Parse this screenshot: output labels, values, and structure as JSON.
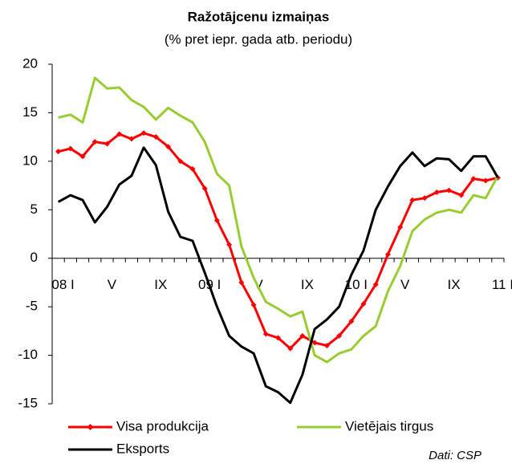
{
  "chart_data": {
    "type": "line",
    "title": "Ražotājcenu izmaiņas",
    "subtitle": "(% pret iepr. gada atb. periodu)",
    "annotation": "Dati: CSP",
    "categories": [
      "08 I",
      null,
      null,
      null,
      "V",
      null,
      null,
      null,
      "IX",
      null,
      null,
      null,
      "09 I",
      null,
      null,
      null,
      "V",
      null,
      null,
      null,
      "IX",
      null,
      null,
      null,
      "10 I",
      null,
      null,
      null,
      "V",
      null,
      null,
      null,
      "IX",
      null,
      null,
      null,
      "11 I"
    ],
    "series": [
      {
        "name": "Visa produkcija",
        "color": "#ff0000",
        "markers": true,
        "values": [
          11,
          11.3,
          10.5,
          12,
          11.8,
          12.8,
          12.3,
          12.9,
          12.5,
          11.5,
          10,
          9.2,
          7.2,
          3.9,
          1.4,
          -2.5,
          -4.8,
          -7.8,
          -8.2,
          -9.3,
          -8,
          -8.7,
          -9,
          -8,
          -6.5,
          -4.7,
          -2.7,
          0.4,
          3.2,
          6,
          6.2,
          6.8,
          7,
          6.5,
          8.2,
          8,
          8.3
        ]
      },
      {
        "name": "Vietējais tirgus",
        "color": "#99cc33",
        "markers": false,
        "values": [
          14.5,
          14.8,
          14,
          18.6,
          17.5,
          17.6,
          16.3,
          15.6,
          14.3,
          15.5,
          14.7,
          14,
          12,
          8.7,
          7.5,
          1.2,
          -2,
          -4.5,
          -5.2,
          -6,
          -5.5,
          -10,
          -10.7,
          -9.8,
          -9.4,
          -8,
          -7,
          -3.4,
          -0.8,
          2.8,
          4,
          4.7,
          5,
          4.7,
          6.5,
          6.2,
          8.5
        ]
      },
      {
        "name": "Eksports",
        "color": "#000000",
        "markers": false,
        "values": [
          5.8,
          6.5,
          6,
          3.7,
          5.3,
          7.6,
          8.5,
          11.4,
          9.6,
          4.8,
          2.2,
          1.8,
          -1.5,
          -5,
          -8,
          -9.1,
          -9.8,
          -13.2,
          -13.8,
          -14.9,
          -12,
          -7.3,
          -6.3,
          -5,
          -1.7,
          0.8,
          5,
          7.4,
          9.5,
          10.9,
          9.5,
          10.3,
          10.2,
          9,
          10.5,
          10.5,
          8.3
        ]
      }
    ],
    "ylim": [
      -15,
      20
    ],
    "yticks": [
      -15,
      -10,
      -5,
      0,
      5,
      10,
      15,
      20
    ],
    "grid": false
  }
}
